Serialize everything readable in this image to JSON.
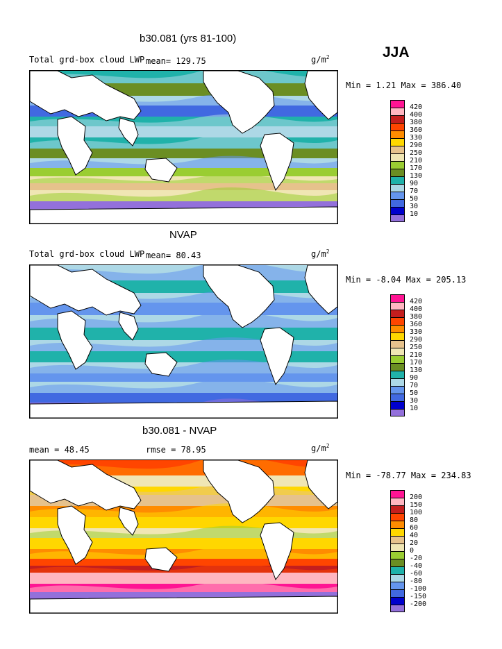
{
  "season": "JJA",
  "units": "g/m",
  "units_sup": "2",
  "panels": [
    {
      "title": "b30.081 (yrs 81-100)",
      "label_left": "Total grd-box cloud LWP",
      "label_mid": "mean=  129.75",
      "minmax": "Min =    1.21 Max = 386.40"
    },
    {
      "title": "NVAP",
      "label_left": "Total grd-box cloud LWP",
      "label_mid": "mean=  80.43",
      "minmax": "Min =  -8.04 Max = 205.13"
    },
    {
      "title": "b30.081 - NVAP",
      "label_left": "mean =   48.45",
      "label_mid": "rmse =   78.95",
      "minmax": "Min = -78.77 Max = 234.83"
    }
  ],
  "chart_data": [
    {
      "type": "heatmap",
      "title": "b30.081 (yrs 81-100)",
      "subtitle": "Total grd-box cloud LWP",
      "mean": 129.75,
      "min": 1.21,
      "max": 386.4,
      "levels": [
        "420",
        "400",
        "380",
        "360",
        "330",
        "290",
        "250",
        "210",
        "170",
        "130",
        "90",
        "70",
        "50",
        "30",
        "10"
      ],
      "colors": [
        "#ff1493",
        "#ffb6c1",
        "#c41e1e",
        "#ff4500",
        "#ff8c00",
        "#ffd700",
        "#e6c28c",
        "#f0e6b4",
        "#9acd32",
        "#6b8e23",
        "#20b2aa",
        "#add8e6",
        "#6495ed",
        "#4169e1",
        "#0000cd",
        "#9370db"
      ]
    },
    {
      "type": "heatmap",
      "title": "NVAP",
      "subtitle": "Total grd-box cloud LWP",
      "mean": 80.43,
      "min": -8.04,
      "max": 205.13,
      "levels": [
        "420",
        "400",
        "380",
        "360",
        "330",
        "290",
        "250",
        "210",
        "170",
        "130",
        "90",
        "70",
        "50",
        "30",
        "10"
      ],
      "colors": [
        "#ff1493",
        "#ffb6c1",
        "#c41e1e",
        "#ff4500",
        "#ff8c00",
        "#ffd700",
        "#e6c28c",
        "#f0e6b4",
        "#9acd32",
        "#6b8e23",
        "#20b2aa",
        "#add8e6",
        "#6495ed",
        "#4169e1",
        "#0000cd",
        "#9370db"
      ]
    },
    {
      "type": "heatmap",
      "title": "b30.081 - NVAP",
      "mean": 48.45,
      "rmse": 78.95,
      "min": -78.77,
      "max": 234.83,
      "levels": [
        "200",
        "150",
        "100",
        "80",
        "60",
        "40",
        "20",
        "0",
        "-20",
        "-40",
        "-60",
        "-80",
        "-100",
        "-150",
        "-200"
      ],
      "colors": [
        "#ff1493",
        "#ffb6c1",
        "#c41e1e",
        "#ff4500",
        "#ff8c00",
        "#ffd700",
        "#e6c28c",
        "#f0e6b4",
        "#9acd32",
        "#6b8e23",
        "#20b2aa",
        "#add8e6",
        "#6495ed",
        "#4169e1",
        "#0000cd",
        "#9370db"
      ]
    }
  ]
}
